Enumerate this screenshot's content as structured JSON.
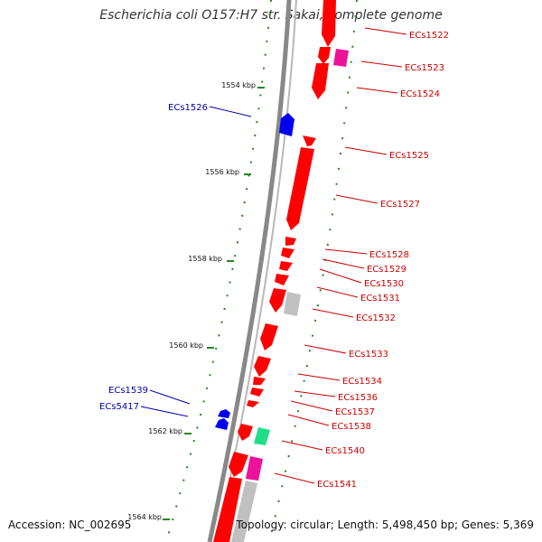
{
  "title": "Escherichia coli O157:H7 str. Sakai, complete genome",
  "accession": "Accession: NC_002695",
  "summary": "Topology: circular; Length: 5,498,450 bp; Genes: 5,369",
  "colors": {
    "forward_cds": "#ff0000",
    "reverse_cds": "#0000ee",
    "pink_feature": "#ee1199",
    "green_feature": "#22dd88",
    "grey_feature": "#c0c0c0",
    "backbone": "#888888",
    "tick": "#228822",
    "label_forward": "#cc0000",
    "label_reverse": "#0000aa"
  },
  "scale_labels": [
    "1554 kbp",
    "1556 kbp",
    "1558 kbp",
    "1560 kbp",
    "1562 kbp",
    "1564 kbp"
  ],
  "genes_forward": [
    "ECs1522",
    "ECs1523",
    "ECs1524",
    "ECs1525",
    "ECs1527",
    "ECs1528",
    "ECs1529",
    "ECs1530",
    "ECs1531",
    "ECs1532",
    "ECs1533",
    "ECs1534",
    "ECs1536",
    "ECs1537",
    "ECs1538",
    "ECs1540",
    "ECs1541"
  ],
  "genes_reverse": [
    "ECs1526",
    "ECs1539",
    "ECs5417"
  ]
}
